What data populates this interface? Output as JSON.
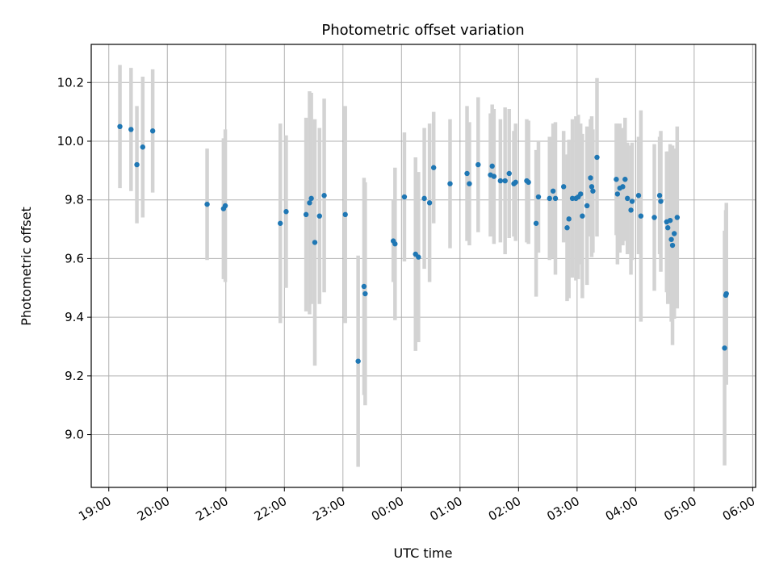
{
  "chart_data": {
    "type": "scatter",
    "title": "Photometric offset variation",
    "xlabel": "UTC time",
    "ylabel": "Photometric offset",
    "grid": true,
    "x_unit": "hours since 19:00 UTC",
    "xlim": [
      -0.3,
      11.05
    ],
    "ylim": [
      8.82,
      10.33
    ],
    "xticks": [
      {
        "value": 0,
        "label": "19:00"
      },
      {
        "value": 1,
        "label": "20:00"
      },
      {
        "value": 2,
        "label": "21:00"
      },
      {
        "value": 3,
        "label": "22:00"
      },
      {
        "value": 4,
        "label": "23:00"
      },
      {
        "value": 5,
        "label": "00:00"
      },
      {
        "value": 6,
        "label": "01:00"
      },
      {
        "value": 7,
        "label": "02:00"
      },
      {
        "value": 8,
        "label": "03:00"
      },
      {
        "value": 9,
        "label": "04:00"
      },
      {
        "value": 10,
        "label": "05:00"
      },
      {
        "value": 11,
        "label": "06:00"
      }
    ],
    "yticks": [
      {
        "value": 9.0,
        "label": "9.0"
      },
      {
        "value": 9.2,
        "label": "9.2"
      },
      {
        "value": 9.4,
        "label": "9.4"
      },
      {
        "value": 9.6,
        "label": "9.6"
      },
      {
        "value": 9.8,
        "label": "9.8"
      },
      {
        "value": 10.0,
        "label": "10.0"
      },
      {
        "value": 10.2,
        "label": "10.2"
      }
    ],
    "series": [
      {
        "name": "offset",
        "marker_color": "#1f77b4",
        "errorbar_color": "#d3d3d3",
        "points": [
          [
            0.19,
            10.05,
            0.21
          ],
          [
            0.38,
            10.04,
            0.21
          ],
          [
            0.48,
            9.92,
            0.2
          ],
          [
            0.58,
            9.98,
            0.24
          ],
          [
            0.75,
            10.035,
            0.21
          ],
          [
            1.68,
            9.785,
            0.19
          ],
          [
            1.96,
            9.77,
            0.24
          ],
          [
            1.99,
            9.78,
            0.26
          ],
          [
            2.93,
            9.72,
            0.34
          ],
          [
            3.03,
            9.76,
            0.26
          ],
          [
            3.37,
            9.75,
            0.33
          ],
          [
            3.43,
            9.79,
            0.38
          ],
          [
            3.46,
            9.805,
            0.36
          ],
          [
            3.52,
            9.655,
            0.42
          ],
          [
            3.6,
            9.745,
            0.3
          ],
          [
            3.68,
            9.815,
            0.33
          ],
          [
            4.04,
            9.75,
            0.37
          ],
          [
            4.26,
            9.25,
            0.36
          ],
          [
            4.36,
            9.505,
            0.37
          ],
          [
            4.38,
            9.48,
            0.38
          ],
          [
            4.86,
            9.66,
            0.14
          ],
          [
            4.89,
            9.65,
            0.26
          ],
          [
            5.05,
            9.81,
            0.22
          ],
          [
            5.24,
            9.615,
            0.33
          ],
          [
            5.29,
            9.605,
            0.29
          ],
          [
            5.39,
            9.805,
            0.24
          ],
          [
            5.48,
            9.79,
            0.27
          ],
          [
            5.55,
            9.91,
            0.19
          ],
          [
            5.83,
            9.855,
            0.22
          ],
          [
            6.12,
            9.89,
            0.23
          ],
          [
            6.16,
            9.855,
            0.21
          ],
          [
            6.31,
            9.92,
            0.23
          ],
          [
            6.52,
            9.885,
            0.21
          ],
          [
            6.55,
            9.915,
            0.21
          ],
          [
            6.58,
            9.88,
            0.23
          ],
          [
            6.69,
            9.865,
            0.21
          ],
          [
            6.77,
            9.865,
            0.25
          ],
          [
            6.84,
            9.89,
            0.22
          ],
          [
            6.92,
            9.855,
            0.18
          ],
          [
            6.95,
            9.86,
            0.2
          ],
          [
            7.14,
            9.865,
            0.21
          ],
          [
            7.17,
            9.86,
            0.21
          ],
          [
            7.3,
            9.72,
            0.25
          ],
          [
            7.34,
            9.81,
            0.19
          ],
          [
            7.53,
            9.805,
            0.21
          ],
          [
            7.59,
            9.83,
            0.23
          ],
          [
            7.63,
            9.805,
            0.26
          ],
          [
            7.77,
            9.845,
            0.19
          ],
          [
            7.83,
            9.705,
            0.25
          ],
          [
            7.86,
            9.735,
            0.27
          ],
          [
            7.92,
            9.805,
            0.27
          ],
          [
            7.98,
            9.805,
            0.28
          ],
          [
            8.02,
            9.81,
            0.28
          ],
          [
            8.06,
            9.82,
            0.24
          ],
          [
            8.09,
            9.745,
            0.28
          ],
          [
            8.17,
            9.78,
            0.27
          ],
          [
            8.23,
            9.875,
            0.2
          ],
          [
            8.25,
            9.845,
            0.24
          ],
          [
            8.27,
            9.83,
            0.21
          ],
          [
            8.34,
            9.945,
            0.27
          ],
          [
            8.67,
            9.87,
            0.19
          ],
          [
            8.69,
            9.82,
            0.24
          ],
          [
            8.73,
            9.84,
            0.22
          ],
          [
            8.78,
            9.845,
            0.2
          ],
          [
            8.82,
            9.87,
            0.21
          ],
          [
            8.86,
            9.805,
            0.19
          ],
          [
            8.92,
            9.765,
            0.22
          ],
          [
            8.94,
            9.795,
            0.2
          ],
          [
            9.05,
            9.815,
            0.2
          ],
          [
            9.09,
            9.745,
            0.36
          ],
          [
            9.32,
            9.74,
            0.25
          ],
          [
            9.41,
            9.815,
            0.2
          ],
          [
            9.43,
            9.795,
            0.24
          ],
          [
            9.53,
            9.725,
            0.24
          ],
          [
            9.55,
            9.705,
            0.26
          ],
          [
            9.59,
            9.73,
            0.26
          ],
          [
            9.61,
            9.665,
            0.28
          ],
          [
            9.63,
            9.645,
            0.34
          ],
          [
            9.66,
            9.685,
            0.29
          ],
          [
            9.71,
            9.74,
            0.31
          ],
          [
            10.52,
            9.295,
            0.4
          ],
          [
            10.54,
            9.475,
            0.29
          ],
          [
            10.55,
            9.48,
            0.31
          ]
        ]
      }
    ]
  }
}
